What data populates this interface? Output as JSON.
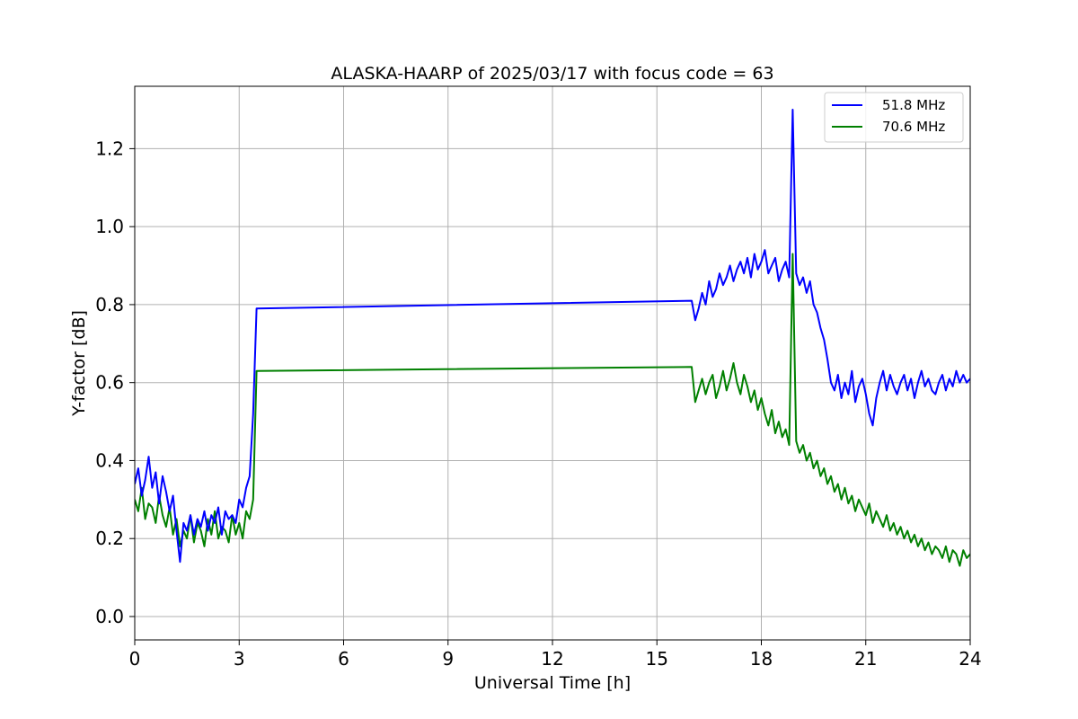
{
  "chart_data": {
    "type": "line",
    "title": "ALASKA-HAARP of 2025/03/17 with focus code = 63",
    "xlabel": "Universal Time [h]",
    "ylabel": "Y-factor [dB]",
    "xlim": [
      0,
      24
    ],
    "ylim": [
      -0.06,
      1.36
    ],
    "xticks": [
      0,
      3,
      6,
      9,
      12,
      15,
      18,
      21,
      24
    ],
    "yticks": [
      0.0,
      0.2,
      0.4,
      0.6,
      0.8,
      1.0,
      1.2
    ],
    "ytick_labels": [
      "0.0",
      "0.2",
      "0.4",
      "0.6",
      "0.8",
      "1.0",
      "1.2"
    ],
    "grid": true,
    "legend_position": "top-right",
    "series": [
      {
        "name": "51.8 MHz",
        "color": "#0000ff",
        "x": [
          0.0,
          0.1,
          0.2,
          0.3,
          0.4,
          0.5,
          0.6,
          0.7,
          0.8,
          0.9,
          1.0,
          1.1,
          1.2,
          1.3,
          1.4,
          1.5,
          1.6,
          1.7,
          1.8,
          1.9,
          2.0,
          2.1,
          2.2,
          2.3,
          2.4,
          2.5,
          2.6,
          2.7,
          2.8,
          2.9,
          3.0,
          3.1,
          3.2,
          3.3,
          3.4,
          3.5,
          16.0,
          16.1,
          16.2,
          16.3,
          16.4,
          16.5,
          16.6,
          16.7,
          16.8,
          16.9,
          17.0,
          17.1,
          17.2,
          17.3,
          17.4,
          17.5,
          17.6,
          17.7,
          17.8,
          17.9,
          18.0,
          18.1,
          18.2,
          18.3,
          18.4,
          18.5,
          18.6,
          18.7,
          18.8,
          18.9,
          19.0,
          19.1,
          19.2,
          19.3,
          19.4,
          19.5,
          19.6,
          19.7,
          19.8,
          19.9,
          20.0,
          20.1,
          20.2,
          20.3,
          20.4,
          20.5,
          20.6,
          20.7,
          20.8,
          20.9,
          21.0,
          21.1,
          21.2,
          21.3,
          21.4,
          21.5,
          21.6,
          21.7,
          21.8,
          21.9,
          22.0,
          22.1,
          22.2,
          22.3,
          22.4,
          22.5,
          22.6,
          22.7,
          22.8,
          22.9,
          23.0,
          23.1,
          23.2,
          23.3,
          23.4,
          23.5,
          23.6,
          23.7,
          23.8,
          23.9,
          24.0
        ],
        "y": [
          0.34,
          0.38,
          0.31,
          0.35,
          0.41,
          0.33,
          0.37,
          0.29,
          0.36,
          0.32,
          0.27,
          0.31,
          0.22,
          0.14,
          0.24,
          0.22,
          0.26,
          0.21,
          0.25,
          0.23,
          0.27,
          0.22,
          0.26,
          0.24,
          0.28,
          0.21,
          0.27,
          0.25,
          0.26,
          0.24,
          0.3,
          0.28,
          0.33,
          0.36,
          0.52,
          0.79,
          0.81,
          0.76,
          0.79,
          0.83,
          0.8,
          0.86,
          0.82,
          0.84,
          0.88,
          0.85,
          0.87,
          0.9,
          0.86,
          0.89,
          0.91,
          0.88,
          0.92,
          0.87,
          0.93,
          0.89,
          0.91,
          0.94,
          0.88,
          0.9,
          0.92,
          0.86,
          0.89,
          0.91,
          0.87,
          1.3,
          0.88,
          0.85,
          0.87,
          0.83,
          0.86,
          0.8,
          0.78,
          0.74,
          0.71,
          0.66,
          0.6,
          0.58,
          0.62,
          0.56,
          0.6,
          0.57,
          0.63,
          0.55,
          0.59,
          0.61,
          0.57,
          0.52,
          0.49,
          0.56,
          0.6,
          0.63,
          0.58,
          0.62,
          0.59,
          0.57,
          0.6,
          0.62,
          0.58,
          0.61,
          0.56,
          0.6,
          0.63,
          0.59,
          0.61,
          0.58,
          0.57,
          0.6,
          0.62,
          0.58,
          0.61,
          0.59,
          0.63,
          0.6,
          0.62,
          0.6,
          0.61
        ]
      },
      {
        "name": "70.6 MHz",
        "color": "#008000",
        "x": [
          0.0,
          0.1,
          0.2,
          0.3,
          0.4,
          0.5,
          0.6,
          0.7,
          0.8,
          0.9,
          1.0,
          1.1,
          1.2,
          1.3,
          1.4,
          1.5,
          1.6,
          1.7,
          1.8,
          1.9,
          2.0,
          2.1,
          2.2,
          2.3,
          2.4,
          2.5,
          2.6,
          2.7,
          2.8,
          2.9,
          3.0,
          3.1,
          3.2,
          3.3,
          3.4,
          3.5,
          16.0,
          16.1,
          16.2,
          16.3,
          16.4,
          16.5,
          16.6,
          16.7,
          16.8,
          16.9,
          17.0,
          17.1,
          17.2,
          17.3,
          17.4,
          17.5,
          17.6,
          17.7,
          17.8,
          17.9,
          18.0,
          18.1,
          18.2,
          18.3,
          18.4,
          18.5,
          18.6,
          18.7,
          18.8,
          18.9,
          19.0,
          19.1,
          19.2,
          19.3,
          19.4,
          19.5,
          19.6,
          19.7,
          19.8,
          19.9,
          20.0,
          20.1,
          20.2,
          20.3,
          20.4,
          20.5,
          20.6,
          20.7,
          20.8,
          20.9,
          21.0,
          21.1,
          21.2,
          21.3,
          21.4,
          21.5,
          21.6,
          21.7,
          21.8,
          21.9,
          22.0,
          22.1,
          22.2,
          22.3,
          22.4,
          22.5,
          22.6,
          22.7,
          22.8,
          22.9,
          23.0,
          23.1,
          23.2,
          23.3,
          23.4,
          23.5,
          23.6,
          23.7,
          23.8,
          23.9,
          24.0
        ],
        "y": [
          0.3,
          0.27,
          0.33,
          0.25,
          0.29,
          0.28,
          0.24,
          0.31,
          0.26,
          0.23,
          0.28,
          0.21,
          0.25,
          0.18,
          0.22,
          0.2,
          0.26,
          0.19,
          0.24,
          0.22,
          0.18,
          0.25,
          0.21,
          0.27,
          0.2,
          0.23,
          0.22,
          0.19,
          0.26,
          0.21,
          0.24,
          0.2,
          0.27,
          0.25,
          0.3,
          0.63,
          0.64,
          0.55,
          0.58,
          0.61,
          0.57,
          0.6,
          0.62,
          0.56,
          0.59,
          0.63,
          0.58,
          0.61,
          0.65,
          0.6,
          0.57,
          0.62,
          0.59,
          0.55,
          0.58,
          0.53,
          0.56,
          0.52,
          0.49,
          0.53,
          0.47,
          0.5,
          0.46,
          0.48,
          0.44,
          0.93,
          0.45,
          0.42,
          0.44,
          0.4,
          0.42,
          0.38,
          0.4,
          0.36,
          0.38,
          0.34,
          0.36,
          0.32,
          0.34,
          0.3,
          0.33,
          0.29,
          0.31,
          0.27,
          0.3,
          0.28,
          0.26,
          0.29,
          0.24,
          0.27,
          0.25,
          0.23,
          0.26,
          0.22,
          0.24,
          0.21,
          0.23,
          0.2,
          0.22,
          0.19,
          0.21,
          0.18,
          0.2,
          0.17,
          0.19,
          0.16,
          0.18,
          0.17,
          0.15,
          0.18,
          0.14,
          0.17,
          0.16,
          0.13,
          0.17,
          0.15,
          0.16
        ]
      }
    ]
  }
}
